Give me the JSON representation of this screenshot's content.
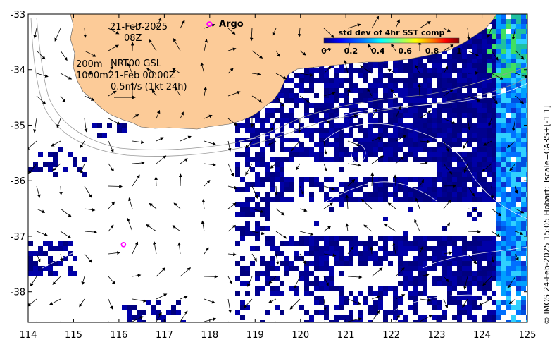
{
  "map": {
    "date": "21-Feb-2025",
    "time": "08Z",
    "depth_shallow": "200m",
    "depth_deep": "1000m",
    "product": "NRT00 GSL",
    "product_time": "21-Feb 00:00Z",
    "vector_scale": "0.5m/s (1kt 24h)",
    "argo_label": "Argo",
    "credit": "© IMOS 24-Feb-2025 15:05 Hobart; Tscale=CARS+[-1 1]"
  },
  "colorbar": {
    "title": "std dev of 4hr SST comp",
    "ticks": [
      "0",
      "0.2",
      "0.4",
      "0.6",
      "0.8",
      "1"
    ],
    "colors": [
      "#00007f",
      "#0000ff",
      "#007fff",
      "#00ffff",
      "#7fff7f",
      "#ffff00",
      "#ff7f00",
      "#ff0000",
      "#7f0000"
    ]
  },
  "axes": {
    "x_ticks": [
      "114",
      "115",
      "116",
      "117",
      "118",
      "119",
      "120",
      "121",
      "122",
      "123",
      "124",
      "125"
    ],
    "y_ticks": [
      "-33",
      "-34",
      "-35",
      "-36",
      "-37",
      "-38"
    ],
    "xlim": [
      114,
      125
    ],
    "ylim": [
      -38.55,
      -33
    ]
  },
  "argo_floats": [
    {
      "lon": 118.0,
      "lat": -33.18
    },
    {
      "lon": 116.1,
      "lat": -37.15
    }
  ],
  "colors": {
    "land": "#fccb98",
    "ocean_field": "#0a30b8",
    "float_marker": "#ff00ff"
  }
}
